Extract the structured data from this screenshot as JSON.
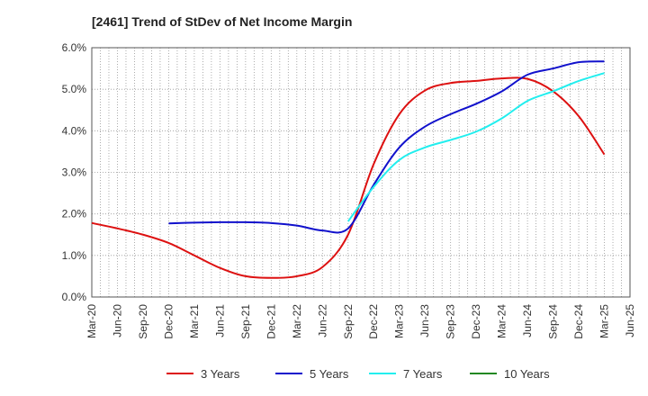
{
  "chart_data": {
    "type": "line",
    "title": "[2461]  Trend of StDev of Net Income Margin",
    "xlabel": "",
    "ylabel": "",
    "x_ticks": [
      "Mar-20",
      "Jun-20",
      "Sep-20",
      "Dec-20",
      "Mar-21",
      "Jun-21",
      "Sep-21",
      "Dec-21",
      "Mar-22",
      "Jun-22",
      "Sep-22",
      "Dec-22",
      "Mar-23",
      "Jun-23",
      "Sep-23",
      "Dec-23",
      "Mar-24",
      "Jun-24",
      "Sep-24",
      "Dec-24",
      "Mar-25",
      "Jun-25"
    ],
    "y_ticks": [
      "0.0%",
      "1.0%",
      "2.0%",
      "3.0%",
      "4.0%",
      "5.0%",
      "6.0%"
    ],
    "ylim": [
      0,
      6
    ],
    "grid": true,
    "legend_position": "bottom",
    "series": [
      {
        "name": "3 Years",
        "color": "#dd1111",
        "x": [
          "Mar-20",
          "Jun-20",
          "Sep-20",
          "Dec-20",
          "Mar-21",
          "Jun-21",
          "Sep-21",
          "Dec-21",
          "Mar-22",
          "Jun-22",
          "Sep-22",
          "Dec-22",
          "Mar-23",
          "Jun-23",
          "Sep-23",
          "Dec-23",
          "Mar-24",
          "Jun-24",
          "Sep-24",
          "Dec-24",
          "Mar-25"
        ],
        "values": [
          1.78,
          1.65,
          1.5,
          1.3,
          1.0,
          0.7,
          0.5,
          0.46,
          0.5,
          0.72,
          1.5,
          3.2,
          4.4,
          4.97,
          5.15,
          5.2,
          5.26,
          5.25,
          4.95,
          4.35,
          3.43
        ]
      },
      {
        "name": "5 Years",
        "color": "#1111cc",
        "x": [
          "Dec-20",
          "Mar-21",
          "Jun-21",
          "Sep-21",
          "Dec-21",
          "Mar-22",
          "Jun-22",
          "Sep-22",
          "Dec-22",
          "Mar-23",
          "Jun-23",
          "Sep-23",
          "Dec-23",
          "Mar-24",
          "Jun-24",
          "Sep-24",
          "Dec-24",
          "Mar-25"
        ],
        "values": [
          1.77,
          1.79,
          1.8,
          1.8,
          1.78,
          1.72,
          1.6,
          1.65,
          2.7,
          3.6,
          4.1,
          4.4,
          4.65,
          4.95,
          5.35,
          5.5,
          5.65,
          5.67
        ]
      },
      {
        "name": "7 Years",
        "color": "#22eeee",
        "x": [
          "Sep-22",
          "Dec-22",
          "Mar-23",
          "Jun-23",
          "Sep-23",
          "Dec-23",
          "Mar-24",
          "Jun-24",
          "Sep-24",
          "Dec-24",
          "Mar-25"
        ],
        "values": [
          1.82,
          2.65,
          3.3,
          3.6,
          3.78,
          3.98,
          4.3,
          4.72,
          4.95,
          5.2,
          5.39
        ]
      },
      {
        "name": "10 Years",
        "color": "#228822",
        "x": [],
        "values": []
      }
    ]
  }
}
